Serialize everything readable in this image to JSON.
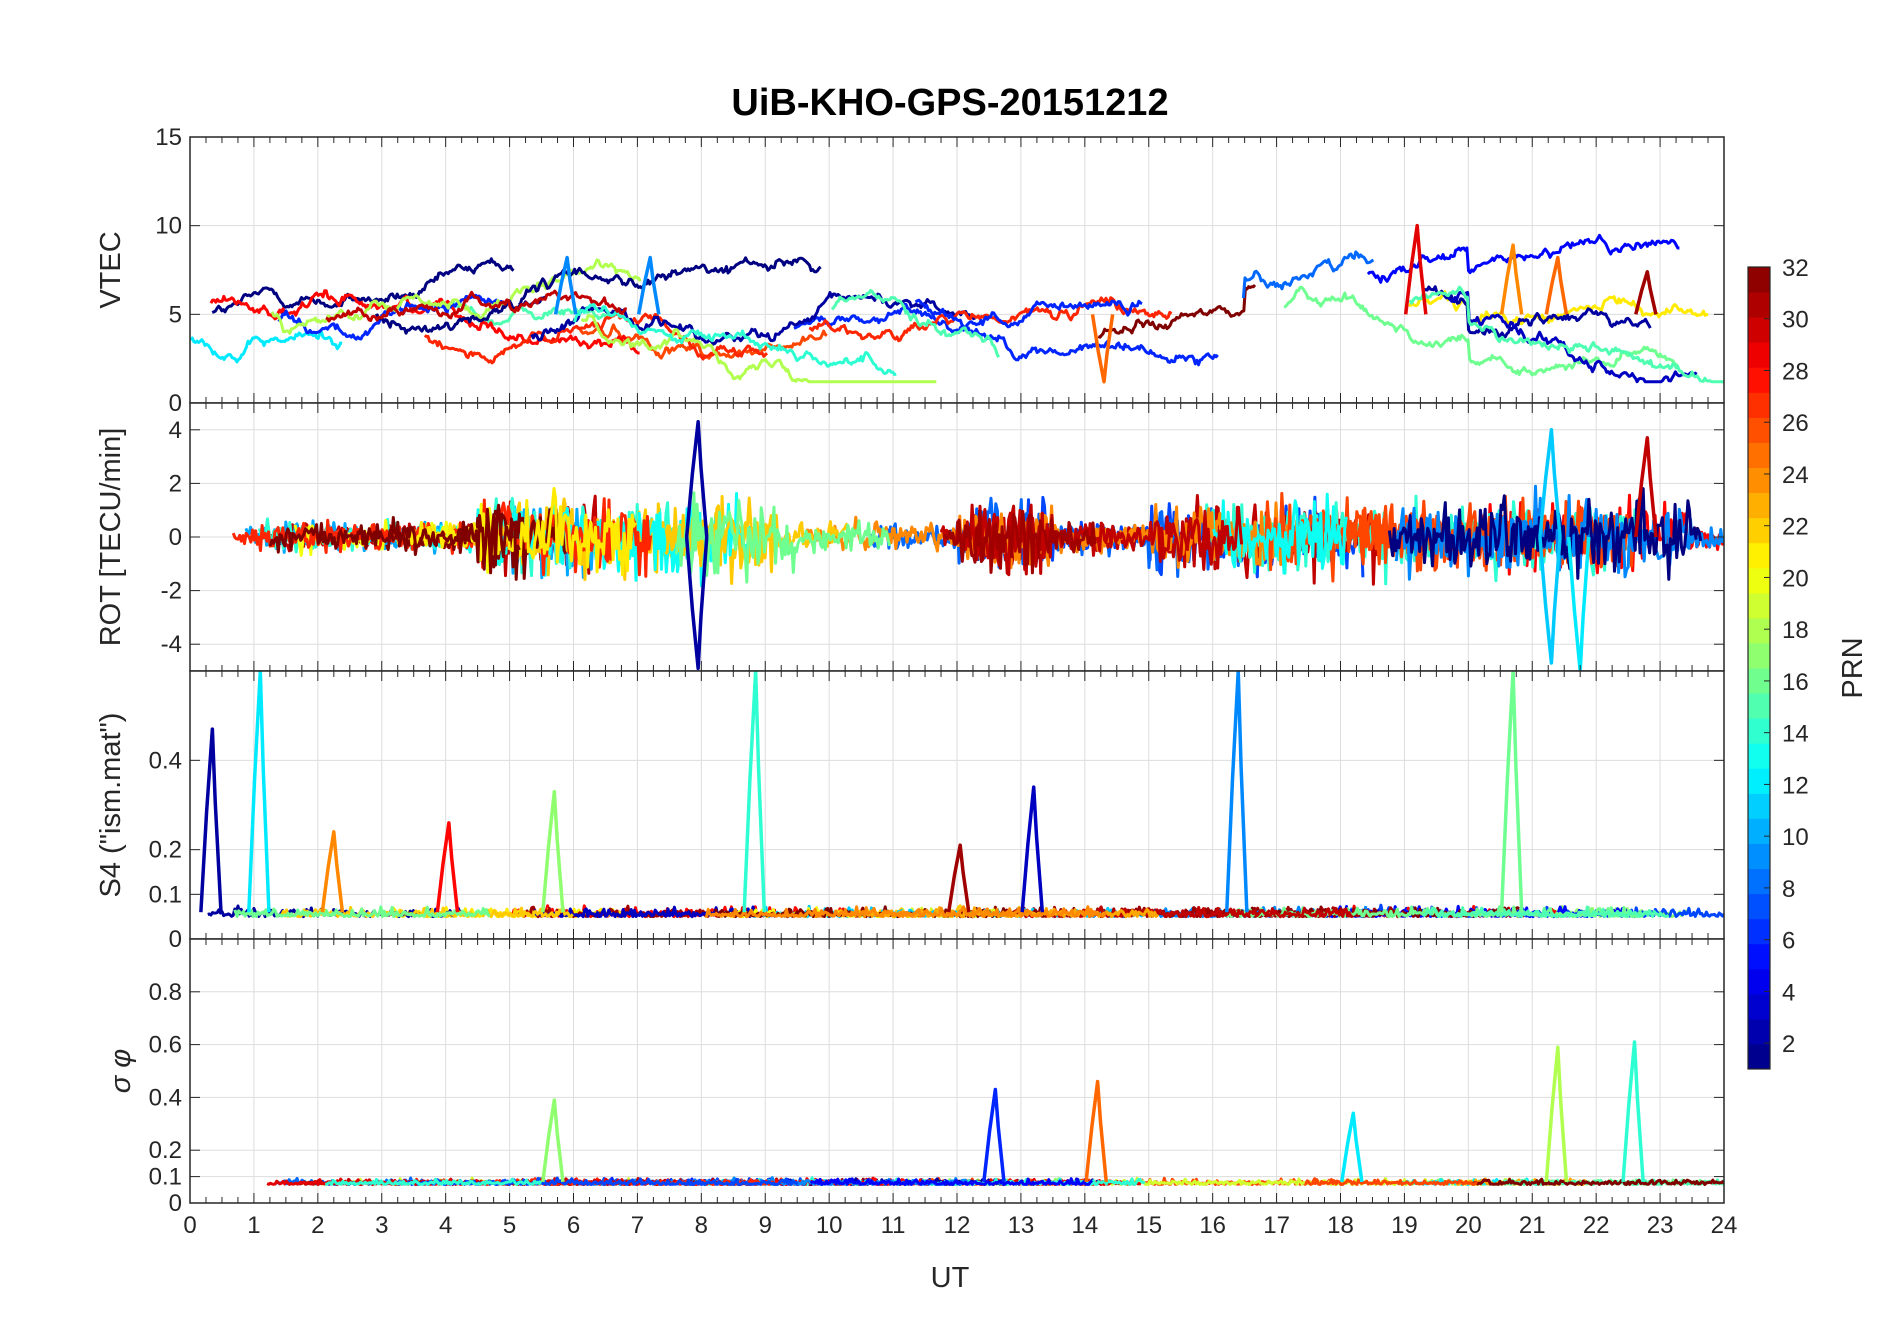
{
  "chart_data": {
    "title": "UiB-KHO-GPS-20151212",
    "xlabel": "UT",
    "xlim": [
      0,
      24
    ],
    "x_ticks": [
      "0",
      "1",
      "2",
      "3",
      "4",
      "5",
      "6",
      "7",
      "8",
      "9",
      "10",
      "11",
      "12",
      "13",
      "14",
      "15",
      "16",
      "17",
      "18",
      "19",
      "20",
      "21",
      "22",
      "23",
      "24"
    ],
    "colormap": "jet",
    "colorbar": {
      "label": "PRN",
      "range": [
        1,
        32
      ],
      "ticks": [
        "2",
        "4",
        "6",
        "8",
        "10",
        "12",
        "14",
        "16",
        "18",
        "20",
        "22",
        "24",
        "26",
        "28",
        "30",
        "32"
      ]
    },
    "grid": true,
    "panels": [
      {
        "type": "line",
        "ylabel": "VTEC",
        "ylim": [
          0,
          15
        ],
        "y_ticks": [
          "0",
          "5",
          "10",
          "15"
        ],
        "series_note": "one line per PRN satellite",
        "highlights": [
          {
            "prn": 29,
            "x": 19.2,
            "y": 10
          },
          {
            "prn": 24,
            "x": 20.7,
            "y": 8.9
          },
          {
            "prn": 25,
            "x": 21.4,
            "y": 8.2
          },
          {
            "prn": 9,
            "x": 5.9,
            "y": 8.2
          },
          {
            "prn": 9,
            "x": 7.2,
            "y": 8.2
          },
          {
            "prn": 31,
            "x": 22.8,
            "y": 7.4
          },
          {
            "prn": 25,
            "x": 14.3,
            "y": 1.2
          }
        ]
      },
      {
        "type": "line",
        "ylabel": "ROT [TECU/min]",
        "ylim": [
          -5,
          5
        ],
        "y_ticks": [
          "-4",
          "-2",
          "0",
          "2",
          "4"
        ],
        "highlights": [
          {
            "prn": 2,
            "x": 7.95,
            "y": 4.3
          },
          {
            "prn": 2,
            "x": 7.95,
            "y": -4.9
          },
          {
            "prn": 11,
            "x": 21.3,
            "y": 4.0
          },
          {
            "prn": 11,
            "x": 21.3,
            "y": -4.7
          },
          {
            "prn": 12,
            "x": 21.75,
            "y": -5.0
          },
          {
            "prn": 30,
            "x": 22.8,
            "y": 3.7
          }
        ]
      },
      {
        "type": "line",
        "ylabel": "S4 (\"ism.mat\")",
        "ylim": [
          0,
          0.6
        ],
        "y_ticks": [
          "0",
          "0.1",
          "0.2",
          "0.4"
        ],
        "highlights": [
          {
            "prn": 2,
            "x": 0.35,
            "y": 0.47
          },
          {
            "prn": 12,
            "x": 1.1,
            "y": 0.6
          },
          {
            "prn": 24,
            "x": 2.25,
            "y": 0.24
          },
          {
            "prn": 28,
            "x": 4.05,
            "y": 0.26
          },
          {
            "prn": 17,
            "x": 5.7,
            "y": 0.33
          },
          {
            "prn": 14,
            "x": 8.85,
            "y": 0.6
          },
          {
            "prn": 31,
            "x": 12.05,
            "y": 0.21
          },
          {
            "prn": 3,
            "x": 13.2,
            "y": 0.34
          },
          {
            "prn": 9,
            "x": 16.4,
            "y": 0.6
          },
          {
            "prn": 16,
            "x": 20.7,
            "y": 0.6
          }
        ]
      },
      {
        "type": "line",
        "ylabel": "σ φ",
        "ylim": [
          0,
          1
        ],
        "y_ticks": [
          "0",
          "0.1",
          "0.2",
          "0.4",
          "0.6",
          "0.8"
        ],
        "highlights": [
          {
            "prn": 17,
            "x": 5.7,
            "y": 0.39
          },
          {
            "prn": 25,
            "x": 14.2,
            "y": 0.46
          },
          {
            "prn": 6,
            "x": 12.6,
            "y": 0.43
          },
          {
            "prn": 18,
            "x": 21.4,
            "y": 0.59
          },
          {
            "prn": 14,
            "x": 22.6,
            "y": 0.61
          },
          {
            "prn": 12,
            "x": 18.2,
            "y": 0.34
          }
        ]
      }
    ]
  }
}
